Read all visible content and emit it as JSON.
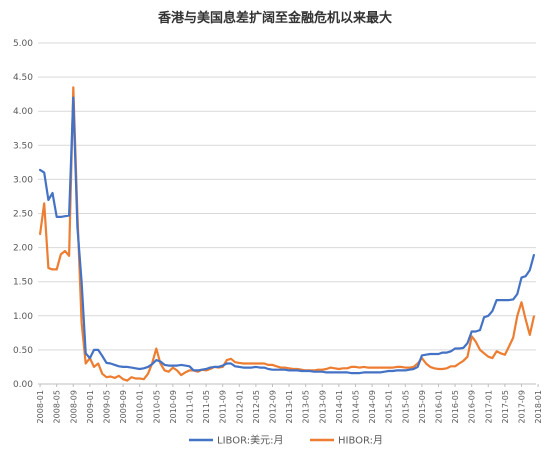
{
  "chart_data": {
    "type": "line",
    "title": "香港与美国息差扩阔至金融危机以来最大",
    "xlabel": "",
    "ylabel": "",
    "ylim": [
      0,
      5
    ],
    "y_ticks": [
      "0.00",
      "0.50",
      "1.00",
      "1.50",
      "2.00",
      "2.50",
      "3.00",
      "3.50",
      "4.00",
      "4.50",
      "5.00"
    ],
    "x_tick_labels": [
      "2008-01",
      "2008-05",
      "2008-09",
      "2009-01",
      "2009-05",
      "2009-09",
      "2010-01",
      "2010-05",
      "2010-09",
      "2011-01",
      "2011-05",
      "2011-09",
      "2012-01",
      "2012-05",
      "2012-09",
      "2013-01",
      "2013-05",
      "2013-09",
      "2014-01",
      "2014-05",
      "2014-09",
      "2015-01",
      "2015-05",
      "2015-09",
      "2016-01",
      "2016-05",
      "2016-09",
      "2017-01",
      "2017-05",
      "2017-09",
      "2018-01"
    ],
    "grid": true,
    "legend_position": "bottom",
    "series": [
      {
        "name": "LIBOR:美元:月",
        "color": "#4472c4",
        "values": [
          3.14,
          3.1,
          2.7,
          2.8,
          2.45,
          2.45,
          2.46,
          2.47,
          4.2,
          2.3,
          1.5,
          0.45,
          0.38,
          0.5,
          0.5,
          0.41,
          0.31,
          0.3,
          0.28,
          0.26,
          0.25,
          0.25,
          0.24,
          0.23,
          0.22,
          0.23,
          0.25,
          0.29,
          0.35,
          0.33,
          0.28,
          0.27,
          0.27,
          0.27,
          0.28,
          0.27,
          0.26,
          0.2,
          0.2,
          0.21,
          0.22,
          0.24,
          0.25,
          0.25,
          0.27,
          0.3,
          0.3,
          0.26,
          0.25,
          0.24,
          0.24,
          0.24,
          0.25,
          0.24,
          0.24,
          0.22,
          0.21,
          0.21,
          0.21,
          0.21,
          0.2,
          0.2,
          0.2,
          0.19,
          0.19,
          0.19,
          0.18,
          0.18,
          0.18,
          0.17,
          0.17,
          0.17,
          0.17,
          0.17,
          0.17,
          0.16,
          0.16,
          0.16,
          0.17,
          0.17,
          0.17,
          0.17,
          0.17,
          0.18,
          0.19,
          0.19,
          0.2,
          0.2,
          0.2,
          0.21,
          0.22,
          0.25,
          0.42,
          0.43,
          0.44,
          0.44,
          0.44,
          0.46,
          0.46,
          0.48,
          0.52,
          0.52,
          0.53,
          0.6,
          0.77,
          0.77,
          0.79,
          0.98,
          1.0,
          1.07,
          1.23,
          1.23,
          1.23,
          1.23,
          1.24,
          1.32,
          1.56,
          1.58,
          1.67,
          1.89
        ]
      },
      {
        "name": "HIBOR:月",
        "color": "#ed7d31",
        "values": [
          2.2,
          2.65,
          1.7,
          1.68,
          1.68,
          1.9,
          1.95,
          1.88,
          4.35,
          2.5,
          0.9,
          0.3,
          0.38,
          0.25,
          0.3,
          0.15,
          0.1,
          0.11,
          0.09,
          0.12,
          0.07,
          0.05,
          0.1,
          0.08,
          0.08,
          0.07,
          0.15,
          0.3,
          0.52,
          0.3,
          0.2,
          0.18,
          0.24,
          0.2,
          0.13,
          0.17,
          0.2,
          0.2,
          0.18,
          0.21,
          0.2,
          0.22,
          0.25,
          0.24,
          0.25,
          0.35,
          0.37,
          0.32,
          0.31,
          0.3,
          0.3,
          0.3,
          0.3,
          0.3,
          0.3,
          0.28,
          0.28,
          0.26,
          0.24,
          0.24,
          0.23,
          0.22,
          0.22,
          0.21,
          0.2,
          0.2,
          0.2,
          0.21,
          0.21,
          0.22,
          0.24,
          0.23,
          0.22,
          0.23,
          0.23,
          0.25,
          0.25,
          0.24,
          0.25,
          0.24,
          0.24,
          0.24,
          0.24,
          0.24,
          0.24,
          0.24,
          0.25,
          0.25,
          0.24,
          0.24,
          0.25,
          0.3,
          0.38,
          0.3,
          0.25,
          0.23,
          0.22,
          0.22,
          0.23,
          0.26,
          0.26,
          0.3,
          0.34,
          0.4,
          0.7,
          0.62,
          0.5,
          0.45,
          0.4,
          0.38,
          0.48,
          0.45,
          0.43,
          0.55,
          0.68,
          1.0,
          1.2,
          0.95,
          0.72,
          0.99
        ]
      }
    ]
  }
}
